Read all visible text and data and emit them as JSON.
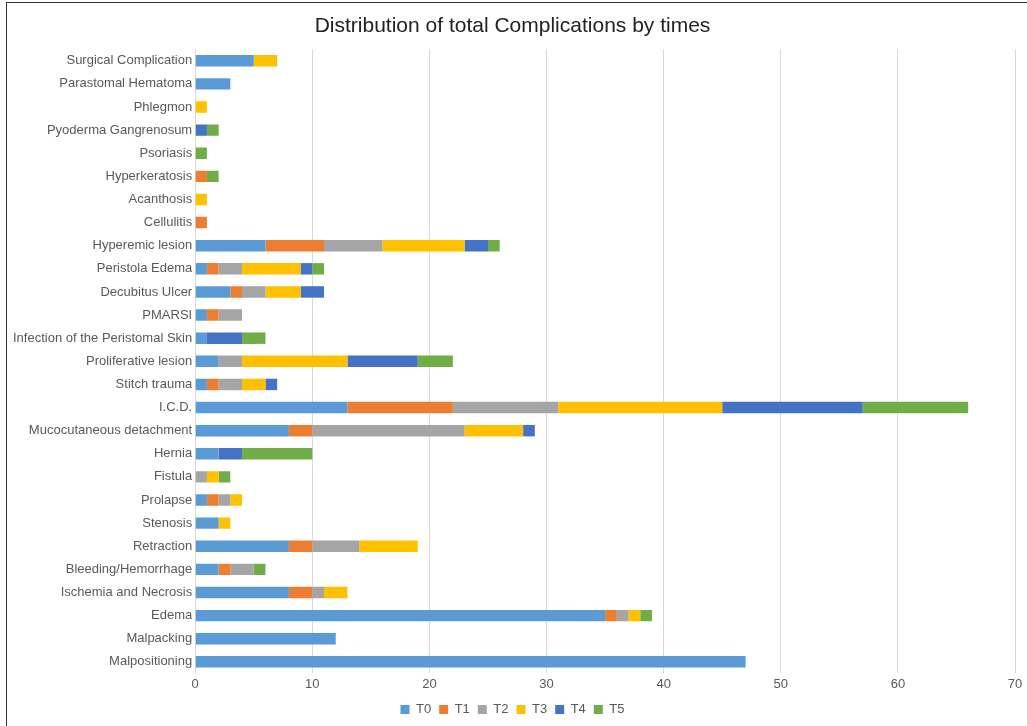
{
  "chart_data": {
    "type": "bar",
    "orientation": "horizontal",
    "stacked": true,
    "title": "Distribution of total Complications by times",
    "categories": [
      "Surgical Complication",
      "Parastomal Hematoma",
      "Phlegmon",
      "Pyoderma Gangrenosum",
      "Psoriasis",
      "Hyperkeratosis",
      "Acanthosis",
      "Cellulitis",
      "Hyperemic lesion",
      "Peristola Edema",
      "Decubitus Ulcer",
      "PMARSI",
      "Infection of the Peristomal Skin",
      "Proliferative lesion",
      "Stitch trauma",
      "I.C.D.",
      "Mucocutaneous detachment",
      "Hernia",
      "Fistula",
      "Prolapse",
      "Stenosis",
      "Retraction",
      "Bleeding/Hemorrhage",
      "Ischemia and Necrosis",
      "Edema",
      "Malpacking",
      "Malpositioning"
    ],
    "series": [
      {
        "name": "T0",
        "color": "#5b9bd5",
        "values": [
          5,
          3,
          0,
          0,
          0,
          0,
          0,
          0,
          6,
          1,
          3,
          1,
          1,
          2,
          1,
          13,
          8,
          2,
          0,
          1,
          2,
          8,
          2,
          8,
          35,
          12,
          47
        ]
      },
      {
        "name": "T1",
        "color": "#ed7d31",
        "values": [
          0,
          0,
          0,
          0,
          0,
          1,
          0,
          1,
          5,
          1,
          1,
          1,
          0,
          0,
          1,
          9,
          2,
          0,
          0,
          1,
          0,
          2,
          1,
          2,
          1,
          0,
          0
        ]
      },
      {
        "name": "T2",
        "color": "#a5a5a5",
        "values": [
          0,
          0,
          0,
          0,
          0,
          0,
          0,
          0,
          5,
          2,
          2,
          2,
          0,
          2,
          2,
          9,
          13,
          0,
          1,
          1,
          0,
          4,
          2,
          1,
          1,
          0,
          0
        ]
      },
      {
        "name": "T3",
        "color": "#ffc000",
        "values": [
          2,
          0,
          1,
          0,
          0,
          0,
          1,
          0,
          7,
          5,
          3,
          0,
          0,
          9,
          2,
          14,
          5,
          0,
          1,
          1,
          1,
          5,
          0,
          2,
          1,
          0,
          0
        ]
      },
      {
        "name": "T4",
        "color": "#4472c4",
        "values": [
          0,
          0,
          0,
          1,
          0,
          0,
          0,
          0,
          2,
          1,
          2,
          0,
          3,
          6,
          1,
          12,
          1,
          2,
          0,
          0,
          0,
          0,
          0,
          0,
          0,
          0,
          0
        ]
      },
      {
        "name": "T5",
        "color": "#70ad47",
        "values": [
          0,
          0,
          0,
          1,
          1,
          1,
          0,
          0,
          1,
          1,
          0,
          0,
          2,
          3,
          0,
          9,
          0,
          6,
          1,
          0,
          0,
          0,
          1,
          0,
          1,
          0,
          0
        ]
      }
    ],
    "xlim": [
      0,
      70
    ],
    "xticks": [
      0,
      10,
      20,
      30,
      40,
      50,
      60,
      70
    ],
    "grid": "x",
    "legend": "bottom"
  }
}
